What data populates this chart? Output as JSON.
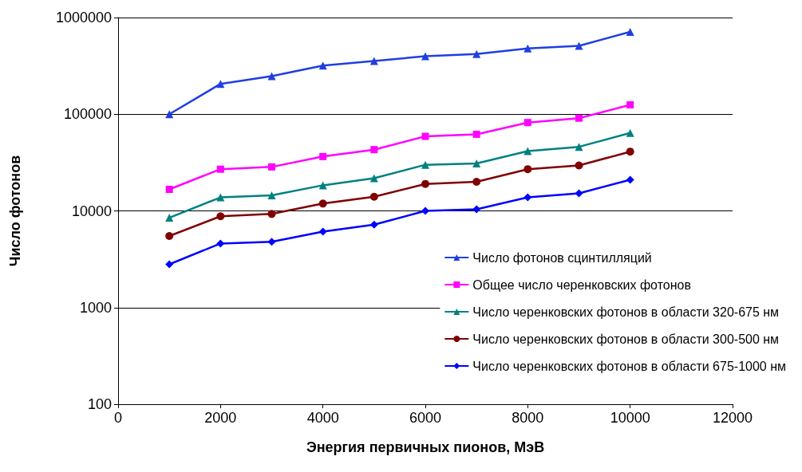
{
  "chart_data": {
    "type": "line",
    "xlabel": "Энергия первичных пионов, МэВ",
    "ylabel": "Число фотонов",
    "x": [
      1000,
      2000,
      3000,
      4000,
      5000,
      6000,
      7000,
      8000,
      9000,
      10000
    ],
    "series": [
      {
        "name": "Число фотонов сцинтилляций",
        "color": "#1f3fe0",
        "marker": "triangle",
        "values": [
          100000,
          206000,
          248000,
          318000,
          355000,
          398000,
          420000,
          480000,
          510000,
          710000
        ]
      },
      {
        "name": "Общее число черенковских фотонов",
        "color": "#ff00ff",
        "marker": "square",
        "values": [
          16700,
          27000,
          28500,
          36500,
          43000,
          59000,
          62000,
          82000,
          91000,
          125000
        ]
      },
      {
        "name": "Число черенковских фотонов в области 320-675 нм",
        "color": "#008080",
        "marker": "triangle",
        "values": [
          8500,
          13800,
          14500,
          18400,
          21800,
          30000,
          31000,
          41500,
          46000,
          64000
        ]
      },
      {
        "name": "Число черенковских фотонов в области 300-500 нм",
        "color": "#800000",
        "marker": "circle",
        "values": [
          5500,
          8800,
          9300,
          11900,
          14000,
          19000,
          20000,
          27000,
          29500,
          41000
        ]
      },
      {
        "name": "Число черенковских фотонов в области 675-1000 нм",
        "color": "#0000ff",
        "marker": "diamond",
        "values": [
          2800,
          4600,
          4800,
          6100,
          7200,
          10000,
          10400,
          13800,
          15200,
          21000
        ]
      }
    ],
    "xlim": [
      0,
      12000
    ],
    "xticks": [
      0,
      2000,
      4000,
      6000,
      8000,
      10000,
      12000
    ],
    "ylim": [
      100,
      1000000
    ],
    "yticks": [
      100,
      1000,
      10000,
      100000,
      1000000
    ],
    "log": "y",
    "grid": "y",
    "legend": "bottom right",
    "line_style": "solid"
  }
}
